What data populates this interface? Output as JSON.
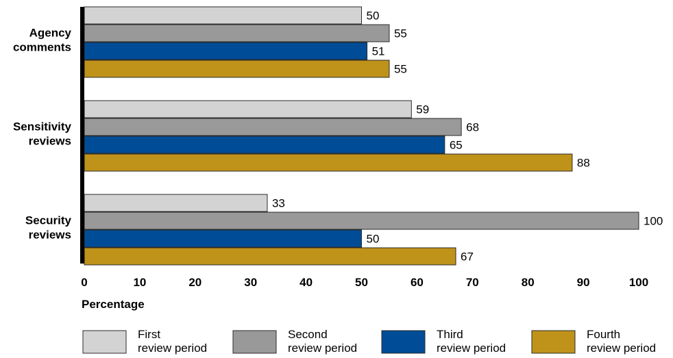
{
  "chart_data": {
    "type": "bar",
    "orientation": "horizontal",
    "categories": [
      "Agency comments",
      "Sensitivity reviews",
      "Security reviews"
    ],
    "category_lines": [
      [
        "Agency",
        "comments"
      ],
      [
        "Sensitivity",
        "reviews"
      ],
      [
        "Security",
        "reviews"
      ]
    ],
    "series": [
      {
        "name": "First review period",
        "legend_lines": [
          "First",
          "review period"
        ],
        "color": "#d3d3d3",
        "values": [
          50,
          59,
          33
        ]
      },
      {
        "name": "Second review period",
        "legend_lines": [
          "Second",
          "review period"
        ],
        "color": "#999999",
        "values": [
          55,
          68,
          100
        ]
      },
      {
        "name": "Third review period",
        "legend_lines": [
          "Third",
          "review period"
        ],
        "color": "#004c97",
        "values": [
          51,
          65,
          50
        ]
      },
      {
        "name": "Fourth review period",
        "legend_lines": [
          "Fourth",
          "review period"
        ],
        "color": "#bf9219",
        "values": [
          55,
          88,
          67
        ]
      }
    ],
    "xlabel": "Percentage",
    "ylabel": "",
    "xlim": [
      0,
      100
    ],
    "xticks": [
      0,
      10,
      20,
      30,
      40,
      50,
      60,
      70,
      80,
      90,
      100
    ],
    "grid": false,
    "legend_position": "bottom"
  }
}
